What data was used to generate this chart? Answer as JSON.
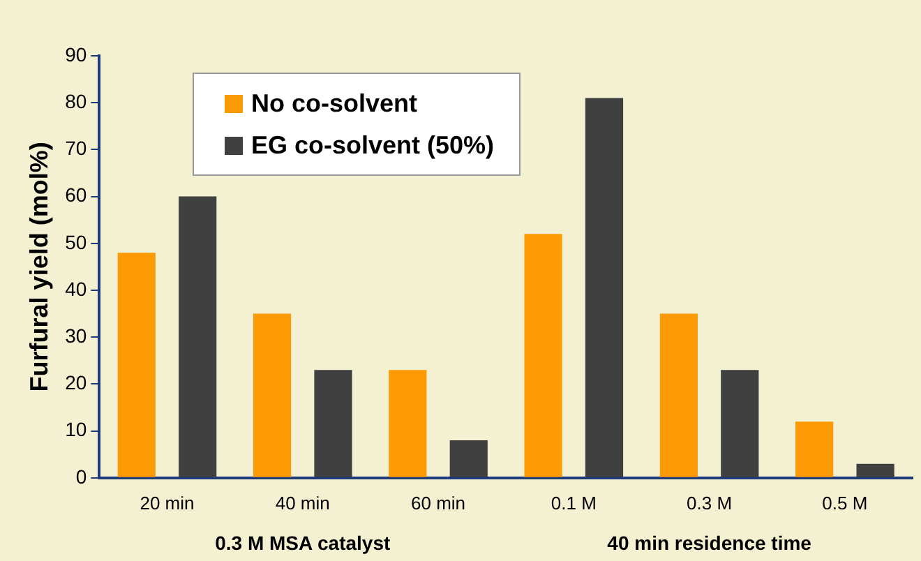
{
  "chart_data": {
    "type": "bar",
    "ylabel": "Furfural yield (mol%)",
    "categories": [
      "20 min",
      "40 min",
      "60 min",
      "0.1 M",
      "0.3 M",
      "0.5 M"
    ],
    "series": [
      {
        "name": "No co-solvent",
        "color": "#fb9a05",
        "values": [
          48,
          35,
          23,
          52,
          35,
          12
        ]
      },
      {
        "name": "EG co-solvent (50%)",
        "color": "#404040",
        "values": [
          60,
          23,
          8,
          81,
          23,
          3
        ]
      }
    ],
    "ylim": [
      0,
      90
    ],
    "yticks": [
      0,
      10,
      20,
      30,
      40,
      50,
      60,
      70,
      80,
      90
    ],
    "grid": false,
    "legend": "top left",
    "annotations": [
      "0.3 M MSA catalyst",
      "40 min residence time"
    ]
  }
}
